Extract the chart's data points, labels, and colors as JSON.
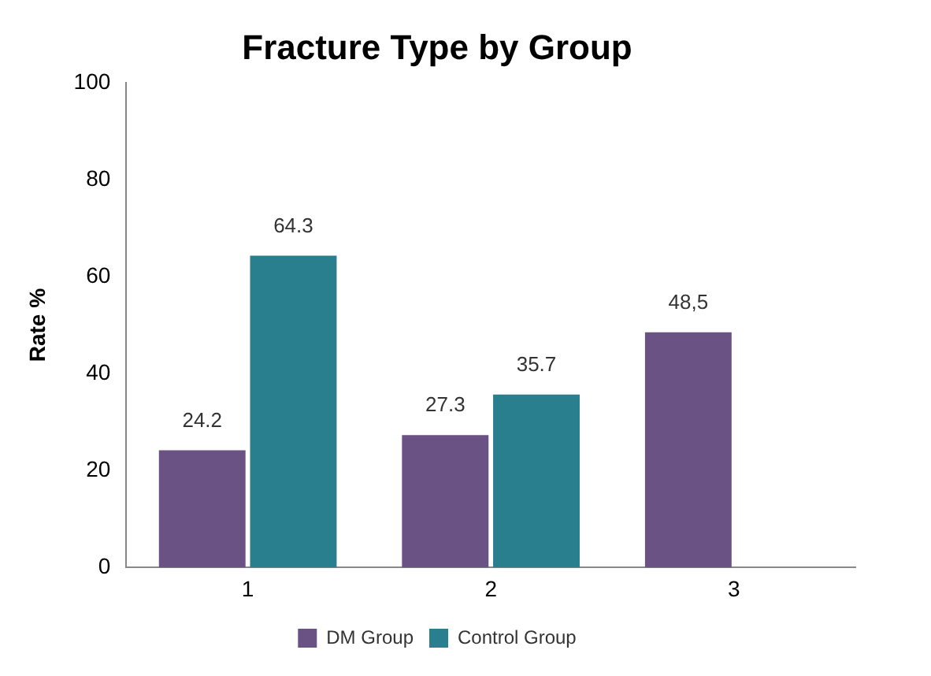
{
  "chart_data": {
    "type": "bar",
    "title": "Fracture Type by Group",
    "ylabel": "Rate %",
    "categories": [
      "1",
      "2",
      "3"
    ],
    "series": [
      {
        "name": "DM Group",
        "color": "#6a5384",
        "values": [
          24.2,
          27.3,
          48.5
        ],
        "value_labels": [
          "24.2",
          "27.3",
          "48,5"
        ]
      },
      {
        "name": "Control Group",
        "color": "#2a7f8e",
        "values": [
          64.3,
          35.7,
          null
        ],
        "value_labels": [
          "64.3",
          "35.7",
          null
        ]
      }
    ],
    "ylim": [
      0,
      100
    ],
    "yticks": [
      0,
      20,
      40,
      60,
      80,
      100
    ],
    "grid": false,
    "legend": "bottom"
  }
}
